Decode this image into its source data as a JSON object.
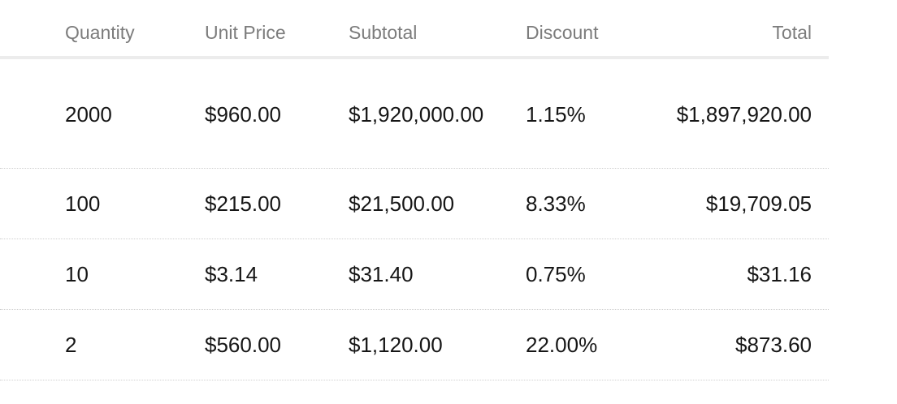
{
  "columns": {
    "quantity": "Quantity",
    "unit_price": "Unit Price",
    "subtotal": "Subtotal",
    "discount": "Discount",
    "total": "Total"
  },
  "rows": [
    {
      "quantity": "2000",
      "unit_price": "$960.00",
      "subtotal": "$1,920,000.00",
      "discount": "1.15%",
      "total": "$1,897,920.00"
    },
    {
      "quantity": "100",
      "unit_price": "$215.00",
      "subtotal": "$21,500.00",
      "discount": "8.33%",
      "total": "$19,709.05"
    },
    {
      "quantity": "10",
      "unit_price": "$3.14",
      "subtotal": "$31.40",
      "discount": "0.75%",
      "total": "$31.16"
    },
    {
      "quantity": "2",
      "unit_price": "$560.00",
      "subtotal": "$1,120.00",
      "discount": "22.00%",
      "total": "$873.60"
    }
  ]
}
